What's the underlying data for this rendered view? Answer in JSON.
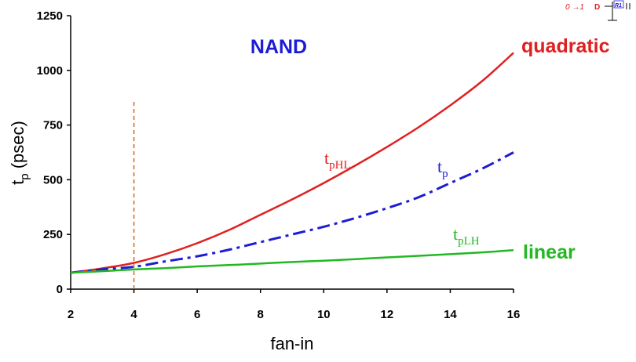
{
  "chart_data": {
    "type": "line",
    "title": "NAND",
    "xlabel": "fan-in",
    "ylabel": {
      "main": "t",
      "sub": "p",
      "rest": " (psec)"
    },
    "xlim": [
      2,
      16
    ],
    "ylim": [
      0,
      1250
    ],
    "x_ticks": [
      2,
      4,
      6,
      8,
      10,
      12,
      14,
      16
    ],
    "y_ticks": [
      0,
      250,
      500,
      750,
      1000,
      1250
    ],
    "grid": false,
    "vline": {
      "x": 4,
      "ymax": 860,
      "color": "#d2691e",
      "style": "dashed"
    },
    "x": [
      2,
      3,
      4,
      5,
      6,
      7,
      8,
      9,
      10,
      11,
      12,
      13,
      14,
      15,
      16
    ],
    "series": [
      {
        "name": "tpHL",
        "label": {
          "main": "t",
          "sub": "pHL"
        },
        "color": "#e02020",
        "style": "solid",
        "values": [
          75,
          95,
          120,
          160,
          210,
          270,
          340,
          410,
          485,
          565,
          650,
          740,
          840,
          950,
          1080
        ]
      },
      {
        "name": "tp",
        "label": {
          "main": "t",
          "sub": "p"
        },
        "color": "#1c1cd6",
        "style": "dashdot",
        "values": [
          75,
          90,
          102,
          127,
          150,
          180,
          215,
          250,
          285,
          325,
          370,
          420,
          485,
          550,
          625
        ]
      },
      {
        "name": "tpLH",
        "label": {
          "main": "t",
          "sub": "pLH"
        },
        "color": "#22b822",
        "style": "solid",
        "values": [
          75,
          82,
          90,
          96,
          104,
          110,
          117,
          124,
          130,
          137,
          145,
          152,
          160,
          168,
          178
        ]
      }
    ],
    "annotations": [
      {
        "text": "quadratic",
        "color": "#e02020"
      },
      {
        "text": "linear",
        "color": "#22b822"
      }
    ]
  },
  "colors": {
    "title": "#1c1cd6",
    "axis": "#000000"
  },
  "schematic": {
    "transition": "0 →1",
    "node": "D",
    "resistor": "R1"
  }
}
